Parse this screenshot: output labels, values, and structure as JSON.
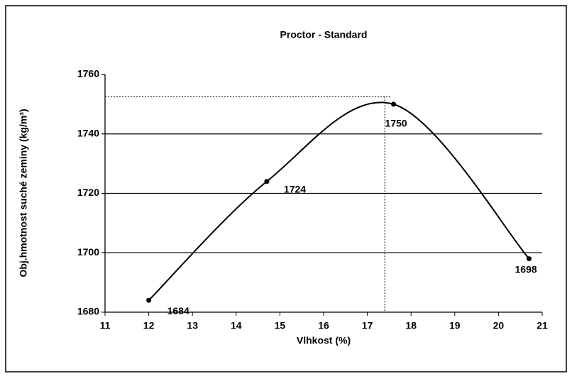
{
  "chart_data": {
    "type": "scatter",
    "title": "Proctor - Standard",
    "x_label": "Vlhkost (%)",
    "y_label": "Obj.hmotnost suché zeminy (kg/m³)",
    "series": [
      {
        "name": "Proctor",
        "color": "#000000",
        "x": [
          12.0,
          14.7,
          17.6,
          20.7
        ],
        "values": [
          1684,
          1724,
          1750,
          1698
        ]
      }
    ],
    "optimum": {
      "x": 17.4,
      "y": 1752.5
    },
    "xlim": [
      11,
      21
    ],
    "xticks": [
      11,
      12,
      13,
      14,
      15,
      16,
      17,
      18,
      19,
      20,
      21
    ],
    "ylim": [
      1680,
      1760
    ],
    "yticks": [
      1680,
      1700,
      1720,
      1740,
      1760
    ],
    "grid": true
  }
}
